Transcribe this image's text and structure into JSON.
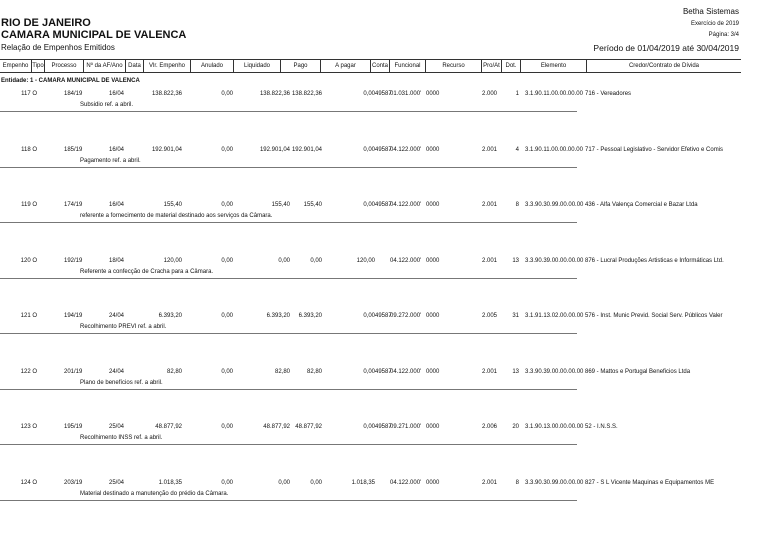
{
  "header": {
    "state": "RIO DE JANEIRO",
    "entity": "CAMARA MUNICIPAL DE VALENCA",
    "report": "Relação de Empenhos Emitidos",
    "system": "Betha Sistemas",
    "exercise": "Exercício de 2019",
    "page": "Página: 3/4",
    "period": "Período de 01/04/2019 até 30/04/2019"
  },
  "columns": [
    "Empenho",
    "Tipo",
    "Processo",
    "Nº da AF/Ano",
    "Data",
    "Vlr. Empenho",
    "Anulado",
    "Liquidado",
    "Pago",
    "A pagar",
    "Conta",
    "Funcional",
    "Recurso",
    "Pro/At",
    "Dot.",
    "Elemento",
    "Credor/Contrato de Dívida"
  ],
  "entity_group": "Entidade: 1 - CAMARA MUNICIPAL DE VALENCA",
  "rows": [
    {
      "empenho": "117 O",
      "processo": "184/19",
      "data": "16/04",
      "valor": "138.822,36",
      "anulado": "0,00",
      "liquidado": "138.822,36",
      "pago": "138.822,36",
      "apagar": "0,00",
      "conta": "49587",
      "funcional": "01.031.000'",
      "recurso": "0000",
      "proat": "2.000",
      "dot": "1",
      "elemento": "3.1.90.11.00.00.00.00",
      "credor": "716 - Vereadores",
      "desc": "Subsidio ref. a abril."
    },
    {
      "empenho": "118 O",
      "processo": "185/19",
      "data": "16/04",
      "valor": "192.901,04",
      "anulado": "0,00",
      "liquidado": "192.901,04",
      "pago": "192.901,04",
      "apagar": "0,00",
      "conta": "49587",
      "funcional": "04.122.000'",
      "recurso": "0000",
      "proat": "2.001",
      "dot": "4",
      "elemento": "3.1.90.11.00.00.00.00",
      "credor": "717 - Pessoal Legislativo - Servidor Efetivo e Comis",
      "desc": "Pagamento ref. a abril."
    },
    {
      "empenho": "119 O",
      "processo": "174/19",
      "data": "16/04",
      "valor": "155,40",
      "anulado": "0,00",
      "liquidado": "155,40",
      "pago": "155,40",
      "apagar": "0,00",
      "conta": "49587",
      "funcional": "04.122.000'",
      "recurso": "0000",
      "proat": "2.001",
      "dot": "8",
      "elemento": "3.3.90.30.99.00.00.00",
      "credor": "436 - Alfa Valença Comercial e Bazar Ltda",
      "desc": "referente a fornecimento de material destinado aos serviços da Câmara."
    },
    {
      "empenho": "120 O",
      "processo": "192/19",
      "data": "18/04",
      "valor": "120,00",
      "anulado": "0,00",
      "liquidado": "0,00",
      "pago": "0,00",
      "apagar": "120,00",
      "conta": "",
      "funcional": "04.122.000'",
      "recurso": "0000",
      "proat": "2.001",
      "dot": "13",
      "elemento": "3.3.90.39.00.00.00.00",
      "credor": "876 - Lucral Produções Artisticas e Informáticas Ltd.",
      "desc": "Referente a confecção de Cracha para a Câmara."
    },
    {
      "empenho": "121 O",
      "processo": "194/19",
      "data": "24/04",
      "valor": "6.393,20",
      "anulado": "0,00",
      "liquidado": "6.393,20",
      "pago": "6.393,20",
      "apagar": "0,00",
      "conta": "49587",
      "funcional": "09.272.000'",
      "recurso": "0000",
      "proat": "2.005",
      "dot": "31",
      "elemento": "3.1.91.13.02.00.00.00",
      "credor": "576 - Inst. Munic Previd. Social Serv. Públicos Valer",
      "desc": "Recolhimento PREVI ref. a abril."
    },
    {
      "empenho": "122 O",
      "processo": "201/19",
      "data": "24/04",
      "valor": "82,80",
      "anulado": "0,00",
      "liquidado": "82,80",
      "pago": "82,80",
      "apagar": "0,00",
      "conta": "49587",
      "funcional": "04.122.000'",
      "recurso": "0000",
      "proat": "2.001",
      "dot": "13",
      "elemento": "3.3.90.39.00.00.00.00",
      "credor": "869 - Mattos e Portugal Beneficios Ltda",
      "desc": "Plano de benefícios ref. a abril."
    },
    {
      "empenho": "123 O",
      "processo": "195/19",
      "data": "25/04",
      "valor": "48.877,92",
      "anulado": "0,00",
      "liquidado": "48.877,92",
      "pago": "48.877,92",
      "apagar": "0,00",
      "conta": "49587",
      "funcional": "09.271.000'",
      "recurso": "0000",
      "proat": "2.006",
      "dot": "20",
      "elemento": "3.1.90.13.00.00.00.00",
      "credor": "52 - I.N.S.S.",
      "desc": "Recolhimento INSS ref. a abril."
    },
    {
      "empenho": "124 O",
      "processo": "203/19",
      "data": "25/04",
      "valor": "1.018,35",
      "anulado": "0,00",
      "liquidado": "0,00",
      "pago": "0,00",
      "apagar": "1.018,35",
      "conta": "",
      "funcional": "04.122.000'",
      "recurso": "0000",
      "proat": "2.001",
      "dot": "8",
      "elemento": "3.3.90.30.99.00.00.00",
      "credor": "827 - S L Vicente Maquinas e Equipamentos ME",
      "desc": "Material destinado a manutenção do prédio da Câmara."
    }
  ]
}
